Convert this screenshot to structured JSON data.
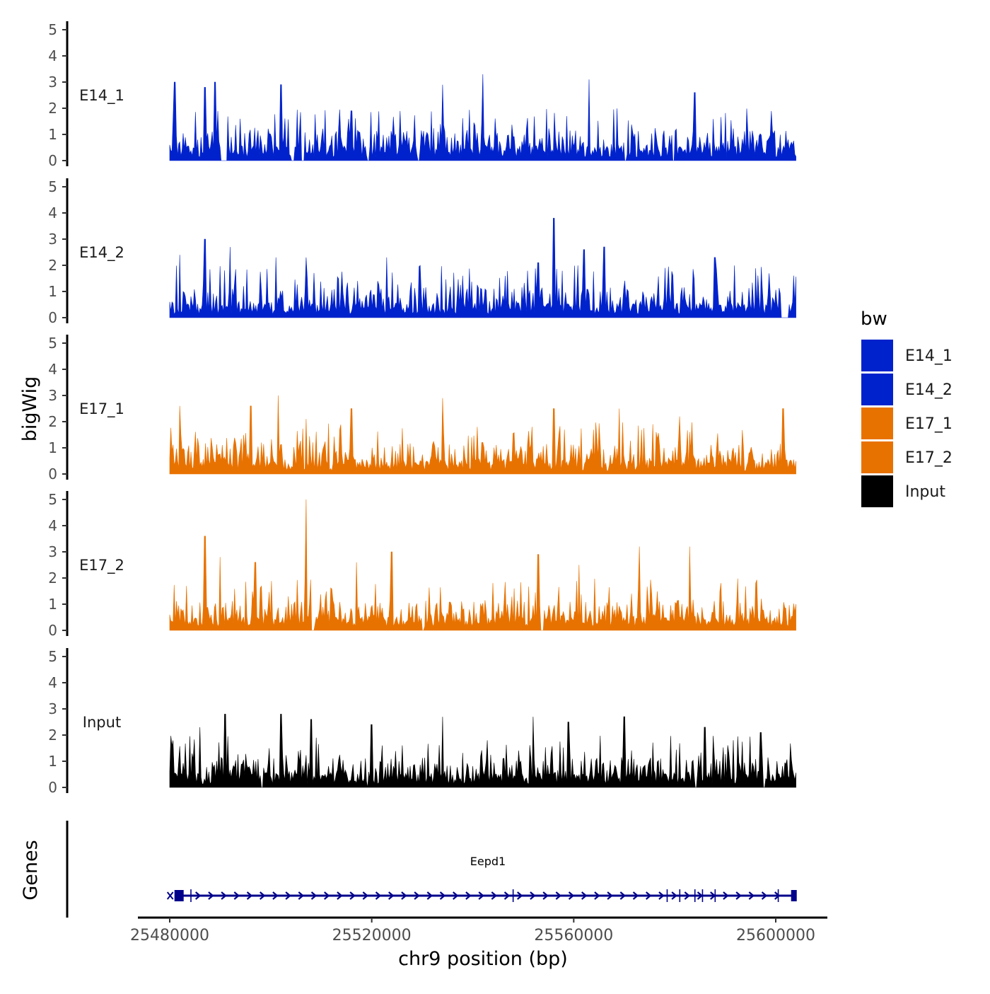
{
  "chart_data": {
    "type": "area",
    "chromosome": "chr9",
    "xlabel": "chr9 position (bp)",
    "ylabel": "bigWig",
    "xlim": [
      25480000,
      25604000
    ],
    "ylim": [
      0,
      5
    ],
    "x_ticks": [
      25480000,
      25520000,
      25560000,
      25600000
    ],
    "x_tick_labels": [
      "25480000",
      "25520000",
      "25560000",
      "25600000"
    ],
    "y_ticks": [
      0,
      1,
      2,
      3,
      4,
      5
    ],
    "y_tick_labels": [
      "0",
      "1",
      "2",
      "3",
      "4",
      "5"
    ],
    "legend": {
      "title": "bw",
      "position": "right",
      "entries": [
        {
          "label": "E14_1",
          "color": "#0022CC"
        },
        {
          "label": "E14_2",
          "color": "#0022CC"
        },
        {
          "label": "E17_1",
          "color": "#E87200"
        },
        {
          "label": "E17_2",
          "color": "#E87200"
        },
        {
          "label": "Input",
          "color": "#000000"
        }
      ]
    },
    "series": [
      {
        "name": "E14_1",
        "color": "#0022CC",
        "seed": 11,
        "peaks": [
          [
            25481000,
            3.0
          ],
          [
            25487000,
            2.8
          ],
          [
            25489000,
            3.0
          ],
          [
            25502000,
            2.9
          ],
          [
            25516000,
            1.9
          ],
          [
            25534000,
            2.9
          ],
          [
            25542000,
            3.3
          ],
          [
            25563000,
            3.1
          ],
          [
            25584000,
            2.6
          ]
        ],
        "gaps": [
          [
            25490000,
            25491500
          ],
          [
            25504000,
            25504700
          ],
          [
            25506000,
            25506600
          ],
          [
            25519000,
            25519600
          ],
          [
            25529000,
            25529400
          ],
          [
            25570000,
            25570500
          ],
          [
            25579500,
            25580000
          ]
        ]
      },
      {
        "name": "E14_2",
        "color": "#0022CC",
        "seed": 23,
        "peaks": [
          [
            25482000,
            2.4
          ],
          [
            25487000,
            3.0
          ],
          [
            25492000,
            2.7
          ],
          [
            25501000,
            2.3
          ],
          [
            25507000,
            2.3
          ],
          [
            25523000,
            2.3
          ],
          [
            25538000,
            1.6
          ],
          [
            25553000,
            2.1
          ],
          [
            25556000,
            3.8
          ],
          [
            25562000,
            2.6
          ],
          [
            25566000,
            2.7
          ],
          [
            25588000,
            2.3
          ]
        ],
        "gaps": [
          [
            25601000,
            25602500
          ]
        ]
      },
      {
        "name": "E17_1",
        "color": "#E87200",
        "seed": 37,
        "peaks": [
          [
            25482000,
            2.6
          ],
          [
            25496000,
            2.6
          ],
          [
            25501500,
            3.0
          ],
          [
            25507000,
            2.1
          ],
          [
            25516000,
            2.5
          ],
          [
            25534000,
            2.9
          ],
          [
            25556000,
            2.5
          ],
          [
            25569000,
            2.5
          ],
          [
            25581000,
            2.2
          ],
          [
            25601500,
            2.5
          ]
        ],
        "gaps": []
      },
      {
        "name": "E17_2",
        "color": "#E87200",
        "seed": 41,
        "peaks": [
          [
            25487000,
            3.6
          ],
          [
            25490000,
            2.8
          ],
          [
            25497000,
            2.6
          ],
          [
            25507000,
            5.0
          ],
          [
            25517000,
            2.6
          ],
          [
            25524000,
            3.0
          ],
          [
            25530000,
            2.4
          ],
          [
            25553000,
            2.9
          ],
          [
            25561000,
            2.5
          ],
          [
            25573000,
            3.2
          ],
          [
            25583000,
            3.2
          ],
          [
            25596000,
            1.8
          ]
        ],
        "gaps": [
          [
            25508000,
            25508600
          ],
          [
            25530000,
            25530400
          ],
          [
            25553500,
            25554000
          ]
        ]
      },
      {
        "name": "Input",
        "color": "#000000",
        "seed": 53,
        "peaks": [
          [
            25486000,
            2.3
          ],
          [
            25491000,
            2.8
          ],
          [
            25502000,
            2.8
          ],
          [
            25508000,
            2.6
          ],
          [
            25520000,
            2.4
          ],
          [
            25534000,
            2.7
          ],
          [
            25552000,
            2.7
          ],
          [
            25559000,
            2.5
          ],
          [
            25570000,
            2.7
          ],
          [
            25586000,
            2.3
          ],
          [
            25597000,
            2.1
          ]
        ],
        "gaps": [
          [
            25498000,
            25498400
          ],
          [
            25519000,
            25519400
          ],
          [
            25584000,
            25584500
          ],
          [
            25597500,
            25598000
          ]
        ]
      }
    ],
    "genes_track": {
      "label": "Genes",
      "gene_name": "Eepd1",
      "start": 25481500,
      "end": 25603600,
      "strand": "+",
      "color": "#00008B",
      "exons": [
        25481500,
        25482200,
        25484200,
        25548000,
        25578500,
        25581000,
        25584000,
        25585500,
        25588000,
        25600500,
        25603600
      ]
    }
  }
}
